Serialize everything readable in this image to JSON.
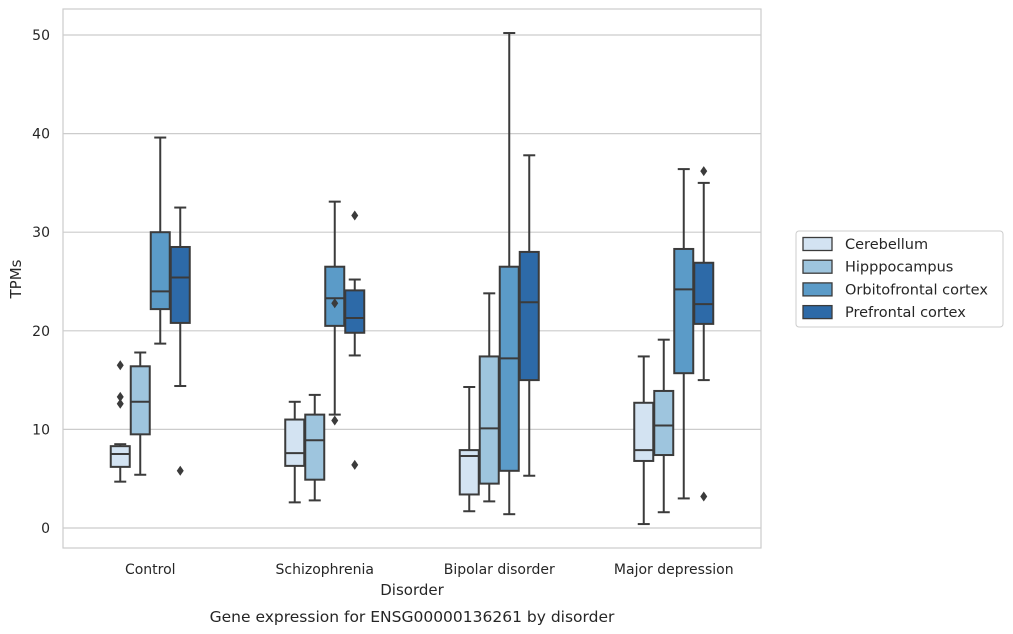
{
  "chart_data": {
    "type": "box",
    "caption": "Gene expression for ENSG00000136261 by disorder",
    "xlabel": "Disorder",
    "ylabel": "TPMs",
    "ylim": [
      -2,
      52.7
    ],
    "yticks": [
      0,
      10,
      20,
      30,
      40,
      50
    ],
    "grid": true,
    "legend_position": "right",
    "categories": [
      "Control",
      "Schizophrenia",
      "Bipolar disorder",
      "Major depression"
    ],
    "series": [
      {
        "name": "Cerebellum",
        "color": "#d3e3f2",
        "boxes": [
          {
            "whisker_low": 4.7,
            "q1": 6.2,
            "median": 7.5,
            "q3": 8.3,
            "whisker_high": 8.5,
            "outliers": [
              12.6,
              13.3,
              16.5
            ]
          },
          {
            "whisker_low": 2.6,
            "q1": 6.3,
            "median": 7.6,
            "q3": 11.0,
            "whisker_high": 12.8,
            "outliers": []
          },
          {
            "whisker_low": 1.7,
            "q1": 3.4,
            "median": 7.3,
            "q3": 7.9,
            "whisker_high": 14.3,
            "outliers": []
          },
          {
            "whisker_low": 0.4,
            "q1": 6.8,
            "median": 7.9,
            "q3": 12.7,
            "whisker_high": 17.4,
            "outliers": []
          }
        ]
      },
      {
        "name": "Hipppocampus",
        "color": "#9ec5de",
        "boxes": [
          {
            "whisker_low": 5.4,
            "q1": 9.5,
            "median": 12.8,
            "q3": 16.4,
            "whisker_high": 17.8,
            "outliers": []
          },
          {
            "whisker_low": 2.8,
            "q1": 4.9,
            "median": 8.9,
            "q3": 11.5,
            "whisker_high": 13.5,
            "outliers": []
          },
          {
            "whisker_low": 2.7,
            "q1": 4.5,
            "median": 10.1,
            "q3": 17.4,
            "whisker_high": 23.8,
            "outliers": []
          },
          {
            "whisker_low": 1.6,
            "q1": 7.4,
            "median": 10.4,
            "q3": 13.9,
            "whisker_high": 19.1,
            "outliers": []
          }
        ]
      },
      {
        "name": "Orbitofrontal cortex",
        "color": "#5b9bc8",
        "boxes": [
          {
            "whisker_low": 18.7,
            "q1": 22.2,
            "median": 24.0,
            "q3": 30.0,
            "whisker_high": 39.6,
            "outliers": []
          },
          {
            "whisker_low": 11.5,
            "q1": 20.5,
            "median": 23.3,
            "q3": 26.5,
            "whisker_high": 33.1,
            "outliers": [
              10.9,
              22.8
            ]
          },
          {
            "whisker_low": 1.4,
            "q1": 5.8,
            "median": 17.2,
            "q3": 26.5,
            "whisker_high": 50.2,
            "outliers": []
          },
          {
            "whisker_low": 3.0,
            "q1": 15.7,
            "median": 24.2,
            "q3": 28.3,
            "whisker_high": 36.4,
            "outliers": []
          }
        ]
      },
      {
        "name": "Prefrontal cortex",
        "color": "#2d6aa8",
        "boxes": [
          {
            "whisker_low": 14.4,
            "q1": 20.8,
            "median": 25.4,
            "q3": 28.5,
            "whisker_high": 32.5,
            "outliers": [
              5.8
            ]
          },
          {
            "whisker_low": 17.5,
            "q1": 19.8,
            "median": 21.3,
            "q3": 24.1,
            "whisker_high": 25.2,
            "outliers": [
              6.4,
              31.7
            ]
          },
          {
            "whisker_low": 5.3,
            "q1": 15.0,
            "median": 22.9,
            "q3": 28.0,
            "whisker_high": 37.8,
            "outliers": []
          },
          {
            "whisker_low": 15.0,
            "q1": 20.7,
            "median": 22.7,
            "q3": 26.9,
            "whisker_high": 35.0,
            "outliers": [
              3.2,
              36.2
            ]
          }
        ]
      }
    ]
  }
}
